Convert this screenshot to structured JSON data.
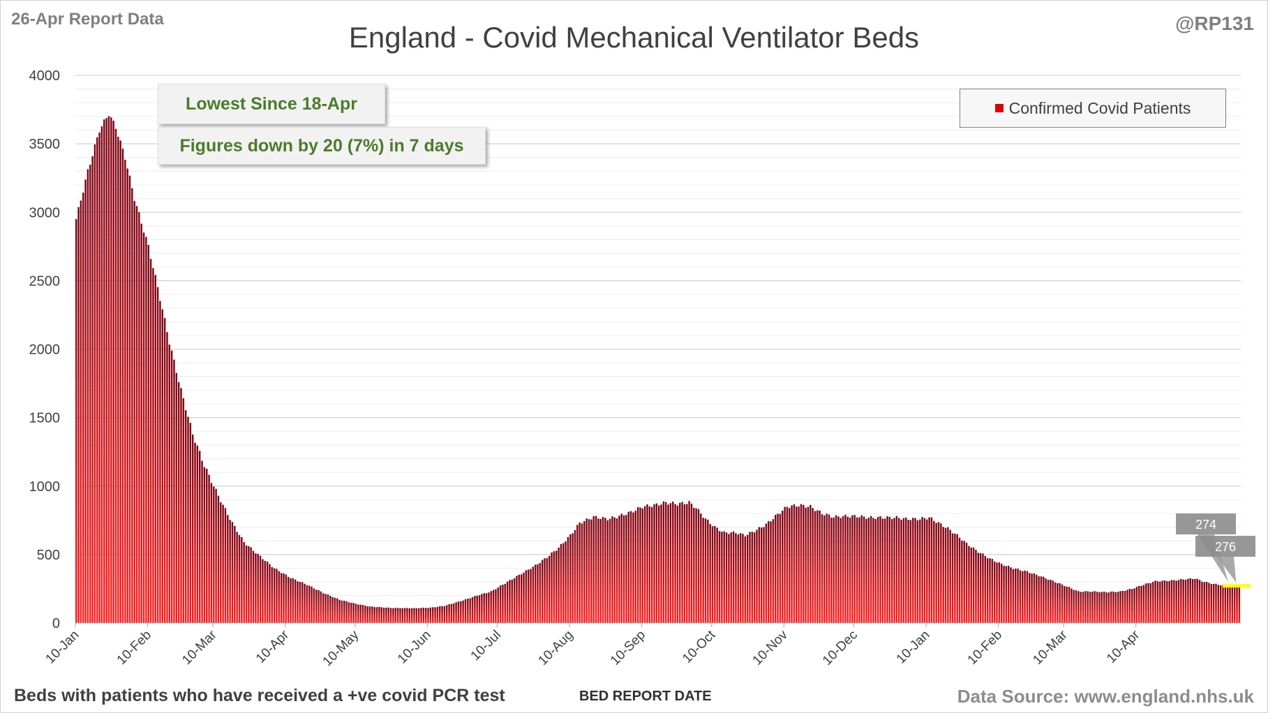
{
  "corner_left": "26-Apr Report Data",
  "corner_right": "@RP131",
  "footer_left": "Beds with patients who have received a +ve covid PCR test",
  "footer_right": "Data Source: www.england.nhs.uk",
  "colors": {
    "bar_top": "#7a0010",
    "bar_bottom": "#ff1a1a",
    "callout_text": "#4a7c2a",
    "highlight": "#ffff00"
  },
  "annotations": {
    "callout_1": "Lowest Since 18-Apr",
    "callout_2": "Figures down by 20 (7%) in 7 days",
    "label_a": "274",
    "label_b": "276"
  },
  "chart_data": {
    "type": "bar",
    "title": "England - Covid Mechanical Ventilator Beds",
    "xlabel": "BED REPORT DATE",
    "ylabel": "",
    "ylim": [
      0,
      4000
    ],
    "yticks": [
      0,
      500,
      1000,
      1500,
      2000,
      2500,
      3000,
      3500,
      4000
    ],
    "xtick_labels": [
      "10-Jan",
      "10-Feb",
      "10-Mar",
      "10-Apr",
      "10-May",
      "10-Jun",
      "10-Jul",
      "10-Aug",
      "10-Sep",
      "10-Oct",
      "10-Nov",
      "10-Dec",
      "10-Jan",
      "10-Feb",
      "10-Mar",
      "10-Apr"
    ],
    "grid": true,
    "legend_position": "top-right",
    "series": [
      {
        "name": "Confirmed Covid Patients",
        "start_date": "10-Jan",
        "anchors_note": "daily values estimated from the chart; piecewise anchor points [day index, beds]",
        "anchors": [
          [
            0,
            2950
          ],
          [
            5,
            3300
          ],
          [
            10,
            3600
          ],
          [
            14,
            3720
          ],
          [
            17,
            3620
          ],
          [
            21,
            3400
          ],
          [
            25,
            3100
          ],
          [
            31,
            2750
          ],
          [
            35,
            2450
          ],
          [
            40,
            2050
          ],
          [
            45,
            1700
          ],
          [
            50,
            1380
          ],
          [
            55,
            1150
          ],
          [
            59,
            1000
          ],
          [
            63,
            860
          ],
          [
            67,
            730
          ],
          [
            72,
            590
          ],
          [
            78,
            500
          ],
          [
            85,
            400
          ],
          [
            92,
            330
          ],
          [
            99,
            280
          ],
          [
            106,
            220
          ],
          [
            113,
            170
          ],
          [
            120,
            140
          ],
          [
            126,
            120
          ],
          [
            135,
            110
          ],
          [
            145,
            108
          ],
          [
            152,
            112
          ],
          [
            158,
            125
          ],
          [
            165,
            160
          ],
          [
            172,
            200
          ],
          [
            178,
            230
          ],
          [
            184,
            290
          ],
          [
            190,
            350
          ],
          [
            197,
            420
          ],
          [
            202,
            480
          ],
          [
            207,
            550
          ],
          [
            212,
            640
          ],
          [
            216,
            730
          ],
          [
            222,
            775
          ],
          [
            228,
            760
          ],
          [
            232,
            775
          ],
          [
            238,
            810
          ],
          [
            243,
            850
          ],
          [
            248,
            860
          ],
          [
            253,
            880
          ],
          [
            258,
            870
          ],
          [
            263,
            880
          ],
          [
            266,
            840
          ],
          [
            270,
            760
          ],
          [
            274,
            700
          ],
          [
            278,
            660
          ],
          [
            283,
            660
          ],
          [
            287,
            640
          ],
          [
            292,
            680
          ],
          [
            296,
            720
          ],
          [
            300,
            780
          ],
          [
            305,
            850
          ],
          [
            310,
            860
          ],
          [
            315,
            850
          ],
          [
            320,
            800
          ],
          [
            325,
            775
          ],
          [
            330,
            780
          ],
          [
            335,
            780
          ],
          [
            340,
            770
          ],
          [
            345,
            770
          ],
          [
            352,
            770
          ],
          [
            356,
            760
          ],
          [
            362,
            760
          ],
          [
            366,
            770
          ],
          [
            370,
            730
          ],
          [
            374,
            690
          ],
          [
            378,
            640
          ],
          [
            382,
            580
          ],
          [
            387,
            520
          ],
          [
            392,
            470
          ],
          [
            397,
            430
          ],
          [
            402,
            400
          ],
          [
            408,
            375
          ],
          [
            414,
            340
          ],
          [
            420,
            300
          ],
          [
            426,
            260
          ],
          [
            430,
            230
          ],
          [
            436,
            230
          ],
          [
            442,
            225
          ],
          [
            448,
            230
          ],
          [
            453,
            250
          ],
          [
            458,
            280
          ],
          [
            463,
            305
          ],
          [
            470,
            310
          ],
          [
            476,
            320
          ],
          [
            480,
            325
          ],
          [
            484,
            300
          ],
          [
            488,
            285
          ],
          [
            492,
            276
          ],
          [
            495,
            274
          ],
          [
            497,
            280
          ],
          [
            499,
            276
          ]
        ]
      }
    ]
  }
}
